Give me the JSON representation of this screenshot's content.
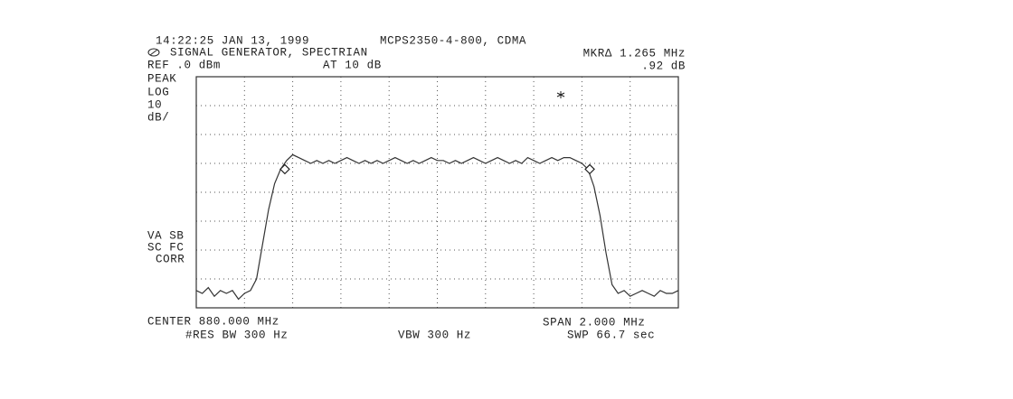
{
  "chart_data": {
    "type": "line",
    "timestamp": "14:22:25 JAN 13, 1999",
    "title": "MCPS2350-4-800, CDMA",
    "subtitle": "SIGNAL GENERATOR, SPECTRIAN",
    "marker_label": "MKRΔ 1.265 MHz",
    "marker_value": ".92 dB",
    "ref_level": "REF .0 dBm",
    "attenuation": "AT 10 dB",
    "detector": [
      "PEAK",
      "LOG",
      "10",
      "dB/"
    ],
    "status": [
      "VA SB",
      "SC FC",
      "CORR"
    ],
    "center": "CENTER 880.000 MHz",
    "span": "SPAN 2.000 MHz",
    "rbw": "#RES BW 300 Hz",
    "vbw": "VBW 300 Hz",
    "sweep": "SWP 66.7 sec",
    "xlim": [
      879,
      881
    ],
    "ylim": [
      -80,
      0
    ],
    "xticks": [
      879,
      879.2,
      879.4,
      879.6,
      879.8,
      880,
      880.2,
      880.4,
      880.6,
      880.8,
      881
    ],
    "yticks": [
      0,
      -10,
      -20,
      -30,
      -40,
      -50,
      -60,
      -70,
      -80
    ],
    "grid": true,
    "color": "#333333",
    "x": [
      879,
      879.025,
      879.05,
      879.075,
      879.1,
      879.125,
      879.15,
      879.175,
      879.2,
      879.225,
      879.25,
      879.275,
      879.3,
      879.325,
      879.35,
      879.375,
      879.4,
      879.425,
      879.45,
      879.475,
      879.5,
      879.525,
      879.55,
      879.575,
      879.6,
      879.625,
      879.65,
      879.675,
      879.7,
      879.725,
      879.75,
      879.775,
      879.8,
      879.825,
      879.85,
      879.875,
      879.9,
      879.925,
      879.95,
      879.975,
      880,
      880.025,
      880.05,
      880.075,
      880.1,
      880.125,
      880.15,
      880.175,
      880.2,
      880.225,
      880.25,
      880.275,
      880.3,
      880.325,
      880.35,
      880.375,
      880.4,
      880.425,
      880.45,
      880.475,
      880.5,
      880.525,
      880.55,
      880.575,
      880.6,
      880.625,
      880.65,
      880.675,
      880.7,
      880.725,
      880.75,
      880.775,
      880.8,
      880.825,
      880.85,
      880.875,
      880.9,
      880.925,
      880.95,
      880.975,
      881
    ],
    "values": [
      -74,
      -75,
      -73,
      -76,
      -74,
      -75,
      -74,
      -77,
      -75,
      -74,
      -70,
      -58,
      -46,
      -37,
      -32,
      -29,
      -27,
      -28,
      -29,
      -30,
      -29,
      -30,
      -29,
      -30,
      -29,
      -28,
      -29,
      -30,
      -29,
      -30,
      -29,
      -30,
      -29,
      -28,
      -29,
      -30,
      -29,
      -30,
      -29,
      -28,
      -29,
      -29,
      -30,
      -29,
      -30,
      -29,
      -28,
      -29,
      -30,
      -29,
      -28,
      -29,
      -30,
      -29,
      -30,
      -28,
      -29,
      -30,
      -29,
      -28,
      -29,
      -28,
      -28,
      -29,
      -30,
      -32,
      -38,
      -48,
      -61,
      -72,
      -75,
      -74,
      -76,
      -75,
      -74,
      -75,
      -76,
      -74,
      -75,
      -75,
      -74
    ],
    "markers": {
      "x": [
        879.3675,
        880.6325
      ],
      "y": [
        -32,
        -32
      ]
    }
  }
}
